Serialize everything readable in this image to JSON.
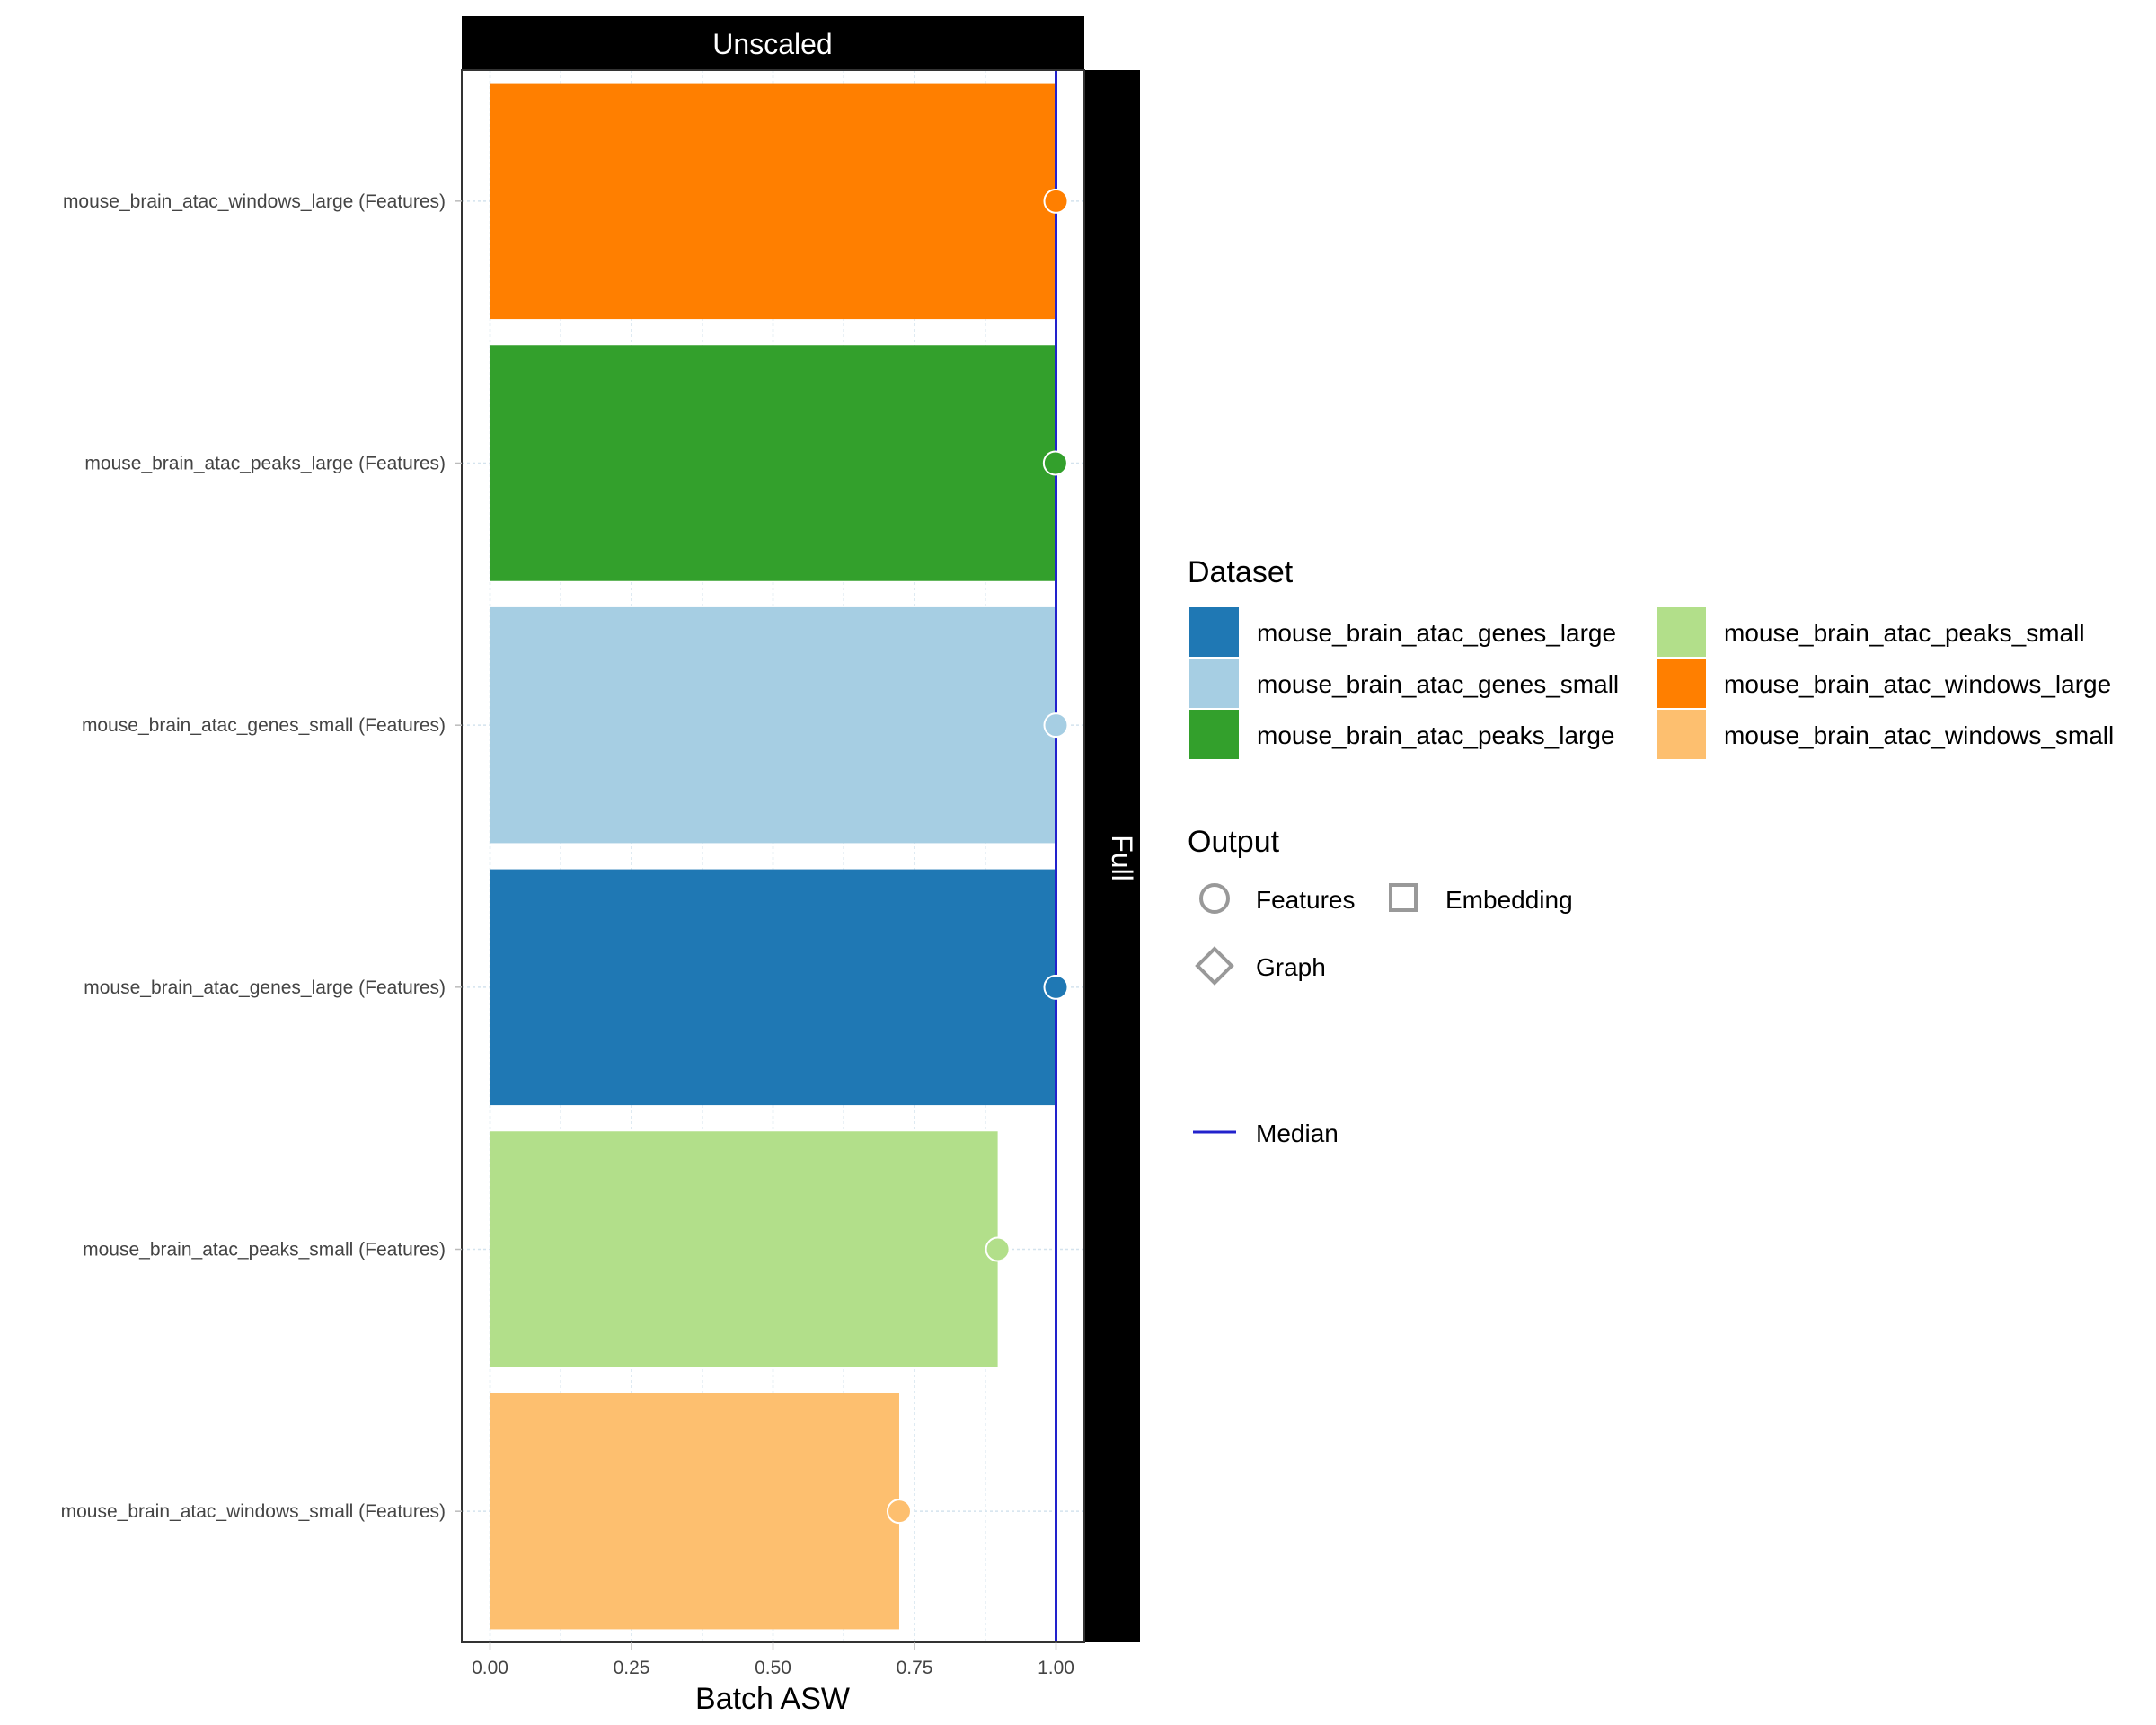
{
  "chart_data": {
    "type": "bar",
    "orientation": "horizontal",
    "facet_top": "Unscaled",
    "facet_right": "Full",
    "xlabel": "Batch ASW",
    "ylabel": "",
    "xlim": [
      -0.05,
      1.05
    ],
    "x_ticks": [
      {
        "value": 0,
        "label": "0.00"
      },
      {
        "value": 0.25,
        "label": "0.25"
      },
      {
        "value": 0.5,
        "label": "0.50"
      },
      {
        "value": 0.75,
        "label": "0.75"
      },
      {
        "value": 1,
        "label": "1.00"
      }
    ],
    "median": 1.0,
    "categories": [
      "mouse_brain_atac_windows_large (Features)",
      "mouse_brain_atac_peaks_large (Features)",
      "mouse_brain_atac_genes_small (Features)",
      "mouse_brain_atac_genes_large (Features)",
      "mouse_brain_atac_peaks_small (Features)",
      "mouse_brain_atac_windows_small (Features)"
    ],
    "values": [
      1.0,
      0.999,
      1.0,
      1.0,
      0.897,
      0.723
    ],
    "bar_datasets": [
      "mouse_brain_atac_windows_large",
      "mouse_brain_atac_peaks_large",
      "mouse_brain_atac_genes_small",
      "mouse_brain_atac_genes_large",
      "mouse_brain_atac_peaks_small",
      "mouse_brain_atac_windows_small"
    ],
    "point_shape": "Features",
    "legend_dataset": {
      "title": "Dataset",
      "entries": [
        {
          "label": "mouse_brain_atac_genes_large",
          "color": "#1F78B4"
        },
        {
          "label": "mouse_brain_atac_genes_small",
          "color": "#A6CEE3"
        },
        {
          "label": "mouse_brain_atac_peaks_large",
          "color": "#33A02C"
        },
        {
          "label": "mouse_brain_atac_peaks_small",
          "color": "#B2DF8A"
        },
        {
          "label": "mouse_brain_atac_windows_large",
          "color": "#FF7F00"
        },
        {
          "label": "mouse_brain_atac_windows_small",
          "color": "#FDBF6F"
        }
      ]
    },
    "legend_output": {
      "title": "Output",
      "entries": [
        {
          "label": "Features",
          "shape": "circle"
        },
        {
          "label": "Embedding",
          "shape": "square"
        },
        {
          "label": "Graph",
          "shape": "diamond"
        }
      ]
    },
    "legend_median": {
      "label": "Median",
      "color": "#2222CC"
    },
    "legend_placement": "right"
  }
}
